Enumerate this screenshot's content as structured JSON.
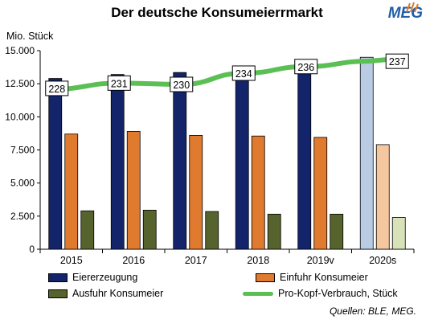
{
  "title": "Der deutsche Konsumeierrmarkt",
  "logo_text": "MEG",
  "y_unit_label": "Mio. Stück",
  "source_note": "Quellen: BLE, MEG.",
  "colors": {
    "eiererzeugung": "#13246b",
    "einfuhr": "#e07a2e",
    "ausfuhr": "#56632d",
    "eiererzeugung_forecast": "#b9cce4",
    "einfuhr_forecast": "#f4c79e",
    "ausfuhr_forecast": "#d8e2b8",
    "verbrauch": "#5cbf54",
    "logo": "#1f5fa8"
  },
  "chart_data": {
    "type": "bar",
    "categories": [
      "2015",
      "2016",
      "2017",
      "2018",
      "2019v",
      "2020s"
    ],
    "ylim": [
      0,
      15000
    ],
    "yticks": [
      "0",
      "2.500",
      "5.000",
      "7.500",
      "10.000",
      "12.500",
      "15.000"
    ],
    "ytick_values": [
      0,
      2500,
      5000,
      7500,
      10000,
      12500,
      15000
    ],
    "forecast_categories": [
      "2020s"
    ],
    "series": [
      {
        "name": "Eiererzeugung",
        "values": [
          12900,
          13200,
          13350,
          13600,
          13900,
          14500
        ]
      },
      {
        "name": "Einfuhr Konsumeier",
        "values": [
          8700,
          8900,
          8600,
          8550,
          8450,
          7900
        ]
      },
      {
        "name": "Ausfuhr Konsumeier",
        "values": [
          2900,
          2950,
          2850,
          2650,
          2650,
          2400
        ]
      }
    ],
    "line_series": {
      "name": "Pro-Kopf-Verbrauch, Stück",
      "values": [
        228,
        231,
        230,
        234,
        236,
        237
      ],
      "plot_values": [
        12150,
        12550,
        12450,
        13300,
        13800,
        14200
      ]
    }
  }
}
